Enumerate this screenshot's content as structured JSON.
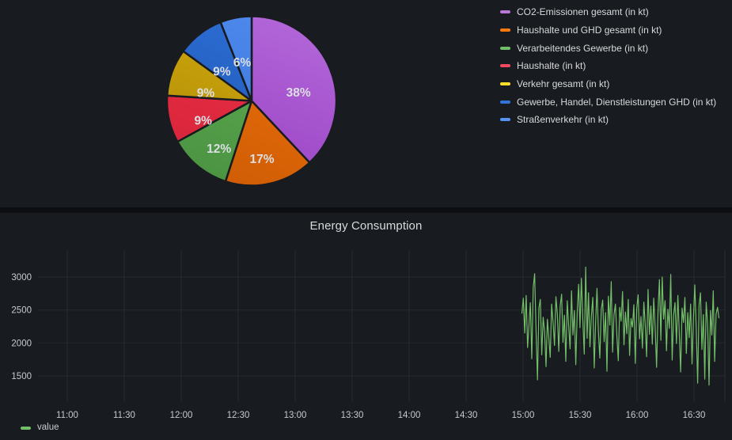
{
  "theme": {
    "page_background": "#0d0e12",
    "panel_background": "#181b1f",
    "grid_color": "rgba(204,204,220,0.08)",
    "text_color": "#d8d9da",
    "tick_color": "#c8cad0"
  },
  "panels": {
    "pie": {
      "legend": [
        {
          "label": "CO2-Emissionen gesamt (in kt)",
          "color": "#B877D9"
        },
        {
          "label": "Haushalte und GHD gesamt (in kt)",
          "color": "#FF780A"
        },
        {
          "label": "Verarbeitendes Gewerbe (in kt)",
          "color": "#73BF69"
        },
        {
          "label": "Haushalte (in kt)",
          "color": "#F2495C"
        },
        {
          "label": "Verkehr gesamt (in kt)",
          "color": "#FADE2A"
        },
        {
          "label": "Gewerbe, Handel, Dienstleistungen GHD (in kt)",
          "color": "#3274D9"
        },
        {
          "label": "Straßenverkehr (in kt)",
          "color": "#5794F2"
        }
      ]
    },
    "timeseries": {
      "title": "Energy Consumption",
      "legend": [
        {
          "label": "value",
          "color": "#73BF69"
        }
      ]
    }
  },
  "chart_data": [
    {
      "type": "pie",
      "title": "",
      "labels": [
        "CO2-Emissionen gesamt (in kt)",
        "Haushalte und GHD gesamt (in kt)",
        "Verarbeitendes Gewerbe (in kt)",
        "Haushalte (in kt)",
        "Verkehr gesamt (in kt)",
        "Gewerbe, Handel, Dienstleistungen GHD (in kt)",
        "Straßenverkehr (in kt)"
      ],
      "values": [
        38,
        17,
        12,
        9,
        9,
        9,
        6
      ],
      "unit": "percent",
      "slice_labels": [
        "38%",
        "17%",
        "12%",
        "9%",
        "9%",
        "9%",
        "6%"
      ],
      "colors": [
        "#B877D9",
        "#FF780A",
        "#73BF69",
        "#F2495C",
        "#FADE2A",
        "#3274D9",
        "#5794F2"
      ],
      "fill_gradients": [
        [
          "#b266d8",
          "#9a41c4"
        ],
        [
          "#ee7208",
          "#cf5c06"
        ],
        [
          "#61ae56",
          "#4b9341"
        ],
        [
          "#ee3148",
          "#d62439"
        ],
        [
          "#d4aa0c",
          "#ae8c07"
        ],
        [
          "#2e6fd6",
          "#1d55b2"
        ],
        [
          "#4e89ee",
          "#3a73d4"
        ]
      ],
      "start_angle_deg": 0,
      "direction": "clockwise",
      "legend_position": "right"
    },
    {
      "type": "line",
      "title": "Energy Consumption",
      "x_ticks": [
        "11:00",
        "11:30",
        "12:00",
        "12:30",
        "13:00",
        "13:30",
        "14:00",
        "14:30",
        "15:00",
        "15:30",
        "16:00",
        "16:30"
      ],
      "y_ticks": [
        3000,
        2500,
        2000,
        1500
      ],
      "ylim": [
        1100,
        3400
      ],
      "data_time_range": {
        "start": "15:00",
        "end": "16:43"
      },
      "grid": true,
      "legend_position": "bottom-left",
      "series": [
        {
          "name": "value",
          "color": "#73BF69",
          "values": [
            2450,
            2680,
            2150,
            2720,
            1930,
            2280,
            2610,
            1760,
            2840,
            3050,
            2190,
            1440,
            2530,
            2660,
            1820,
            2390,
            2170,
            1640,
            2360,
            2080,
            1780,
            2590,
            2310,
            1960,
            2700,
            2440,
            1870,
            2560,
            2740,
            2010,
            2420,
            1720,
            2640,
            2260,
            1910,
            2790,
            2120,
            2490,
            1670,
            2460,
            2890,
            2230,
            2980,
            2350,
            1830,
            3150,
            2070,
            2760,
            1940,
            2410,
            2690,
            1620,
            2320,
            2830,
            2160,
            1770,
            2510,
            2650,
            2020,
            2460,
            1570,
            2710,
            2270,
            2930,
            1860,
            2430,
            2590,
            2110,
            1730,
            2540,
            2330,
            2780,
            1970,
            2470,
            2140,
            2660,
            1810,
            2370,
            2240,
            2580,
            1690,
            2520,
            2730,
            2060,
            2400,
            1920,
            2620,
            2290,
            1790,
            2810,
            2130,
            2560,
            1980,
            2680,
            2230,
            1630,
            2480,
            2960,
            2040,
            3000,
            2360,
            2640,
            1880,
            2510,
            2220,
            3040,
            1740,
            2420,
            2610,
            1990,
            2720,
            2170,
            1560,
            2530,
            2310,
            2690,
            1840,
            2460,
            2080,
            2590,
            1680,
            2380,
            2880,
            2210,
            1390,
            2570,
            2760,
            1900,
            2430,
            1450,
            2620,
            2280,
            1360,
            2490,
            2120,
            2790,
            1720,
            2440,
            2540,
            2380
          ]
        }
      ]
    }
  ]
}
